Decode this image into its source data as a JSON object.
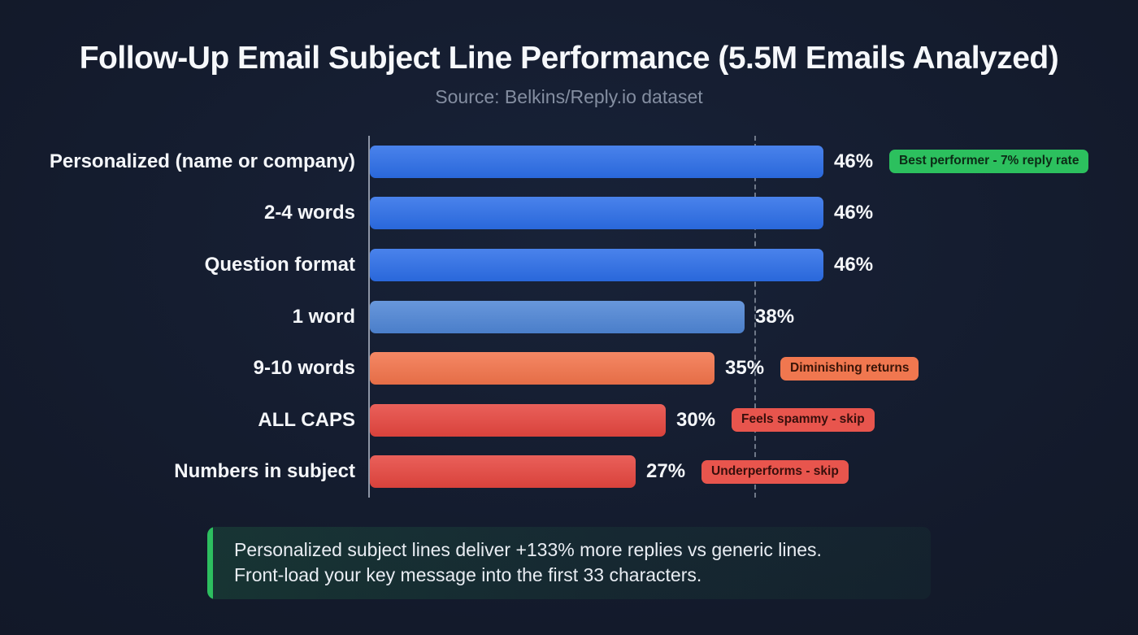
{
  "header": {
    "title": "Follow-Up Email Subject Line Performance (5.5M Emails Analyzed)",
    "subtitle": "Source: Belkins/Reply.io dataset"
  },
  "chart_data": {
    "type": "bar",
    "orientation": "horizontal",
    "title": "Follow-Up Email Subject Line Performance (5.5M Emails Analyzed)",
    "subtitle": "Source: Belkins/Reply.io dataset",
    "categories": [
      "Personalized (name or company)",
      "2-4 words",
      "Question format",
      "1 word",
      "9-10 words",
      "ALL CAPS",
      "Numbers in subject"
    ],
    "values": [
      46,
      46,
      46,
      38,
      35,
      30,
      27
    ],
    "value_labels": [
      "46%",
      "46%",
      "46%",
      "38%",
      "35%",
      "30%",
      "27%"
    ],
    "xlim": [
      0,
      50
    ],
    "xlabel": "",
    "ylabel": "",
    "grid": false,
    "legend": false,
    "benchmark_value": 39,
    "bar_colors": [
      "#2c6ee8",
      "#2c6ee8",
      "#2c6ee8",
      "#4f86d6",
      "#f3744b",
      "#e6463f",
      "#e6463f"
    ],
    "badges": [
      {
        "text": "Best performer - 7% reply rate",
        "bg": "#2cc05e",
        "fg": "#0c2b16"
      },
      null,
      null,
      null,
      {
        "text": "Diminishing returns",
        "bg": "#f0774f",
        "fg": "#3a1508"
      },
      {
        "text": "Feels spammy - skip",
        "bg": "#e8554d",
        "fg": "#380f0c"
      },
      {
        "text": "Underperforms - skip",
        "bg": "#e8554d",
        "fg": "#380f0c"
      }
    ]
  },
  "insight": {
    "line1": "Personalized subject lines deliver +133% more replies vs generic lines.",
    "line2": "Front-load your key message into the first 33 characters.",
    "accent_color": "#2dbe5f"
  },
  "colors": {
    "background": "#131a2b",
    "axis": "#8d95a5",
    "benchmark_line": "#6f7888",
    "title": "#f6f8fb",
    "subtitle": "#848ea1",
    "value_text": "#f4f6f9"
  }
}
